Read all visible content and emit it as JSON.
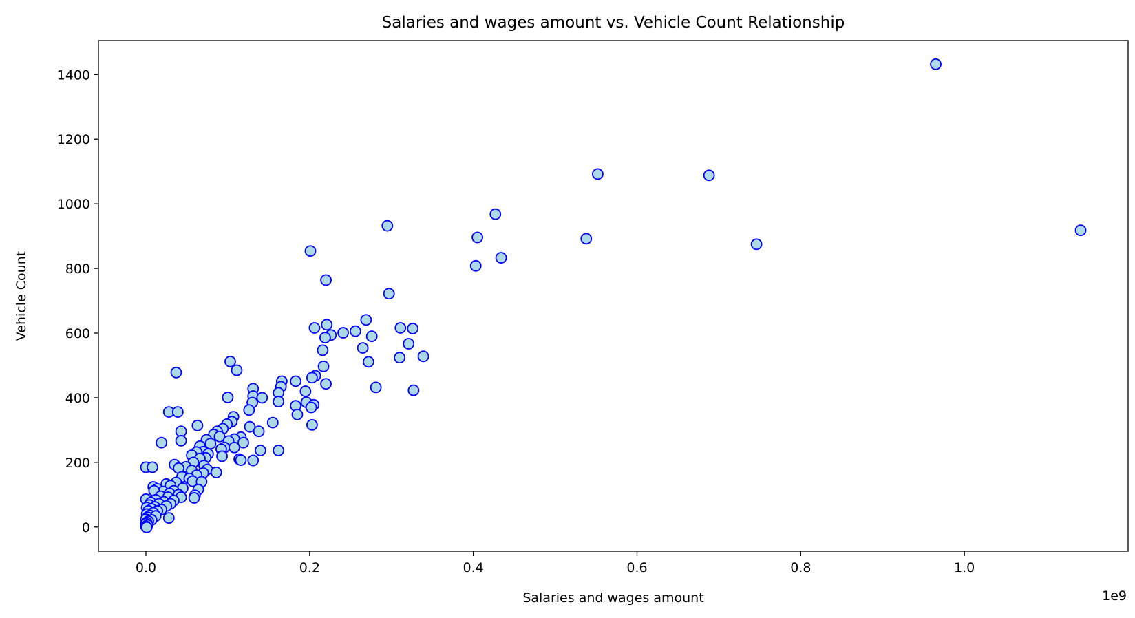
{
  "chart_data": {
    "type": "scatter",
    "title": "Salaries and wages amount vs. Vehicle Count Relationship",
    "xlabel": "Salaries and wages amount",
    "ylabel": "Vehicle Count",
    "x_offset_label": "1e9",
    "xlim": [
      -0.058,
      1.2
    ],
    "ylim": [
      -75,
      1505
    ],
    "x_ticks": [
      0.0,
      0.2,
      0.4,
      0.6,
      0.8,
      1.0
    ],
    "x_tick_labels": [
      "0.0",
      "0.2",
      "0.4",
      "0.6",
      "0.8",
      "1.0"
    ],
    "y_ticks": [
      0,
      200,
      400,
      600,
      800,
      1000,
      1200,
      1400
    ],
    "y_tick_labels": [
      "0",
      "200",
      "400",
      "600",
      "800",
      "1000",
      "1200",
      "1400"
    ],
    "grid": false,
    "marker_face_color": "#add8e6",
    "marker_edge_color": "#0000ff",
    "points": [
      [
        0.965,
        1432
      ],
      [
        0.552,
        1092
      ],
      [
        0.688,
        1088
      ],
      [
        0.427,
        968
      ],
      [
        1.142,
        918
      ],
      [
        0.295,
        932
      ],
      [
        0.405,
        896
      ],
      [
        0.538,
        892
      ],
      [
        0.746,
        875
      ],
      [
        0.201,
        854
      ],
      [
        0.434,
        833
      ],
      [
        0.403,
        808
      ],
      [
        0.22,
        764
      ],
      [
        0.297,
        722
      ],
      [
        0.269,
        641
      ],
      [
        0.221,
        626
      ],
      [
        0.206,
        616
      ],
      [
        0.311,
        616
      ],
      [
        0.326,
        614
      ],
      [
        0.256,
        606
      ],
      [
        0.241,
        601
      ],
      [
        0.226,
        594
      ],
      [
        0.276,
        590
      ],
      [
        0.219,
        586
      ],
      [
        0.321,
        567
      ],
      [
        0.265,
        554
      ],
      [
        0.216,
        547
      ],
      [
        0.339,
        528
      ],
      [
        0.31,
        524
      ],
      [
        0.272,
        511
      ],
      [
        0.103,
        512
      ],
      [
        0.217,
        497
      ],
      [
        0.111,
        485
      ],
      [
        0.037,
        478
      ],
      [
        0.207,
        468
      ],
      [
        0.203,
        462
      ],
      [
        0.166,
        451
      ],
      [
        0.183,
        451
      ],
      [
        0.22,
        443
      ],
      [
        0.165,
        434
      ],
      [
        0.281,
        432
      ],
      [
        0.131,
        428
      ],
      [
        0.327,
        423
      ],
      [
        0.195,
        420
      ],
      [
        0.162,
        415
      ],
      [
        0.131,
        405
      ],
      [
        0.142,
        400
      ],
      [
        0.1,
        401
      ],
      [
        0.162,
        388
      ],
      [
        0.196,
        386
      ],
      [
        0.205,
        378
      ],
      [
        0.183,
        375
      ],
      [
        0.13,
        385
      ],
      [
        0.202,
        370
      ],
      [
        0.126,
        362
      ],
      [
        0.028,
        356
      ],
      [
        0.039,
        356
      ],
      [
        0.185,
        348
      ],
      [
        0.107,
        341
      ],
      [
        0.105,
        326
      ],
      [
        0.155,
        323
      ],
      [
        0.203,
        316
      ],
      [
        0.063,
        314
      ],
      [
        0.127,
        310
      ],
      [
        0.099,
        318
      ],
      [
        0.094,
        304
      ],
      [
        0.087,
        296
      ],
      [
        0.043,
        296
      ],
      [
        0.138,
        296
      ],
      [
        0.083,
        286
      ],
      [
        0.09,
        280
      ],
      [
        0.116,
        278
      ],
      [
        0.108,
        272
      ],
      [
        0.074,
        270
      ],
      [
        0.101,
        266
      ],
      [
        0.043,
        267
      ],
      [
        0.019,
        261
      ],
      [
        0.119,
        261
      ],
      [
        0.079,
        258
      ],
      [
        0.066,
        250
      ],
      [
        0.096,
        246
      ],
      [
        0.108,
        246
      ],
      [
        0.092,
        241
      ],
      [
        0.14,
        237
      ],
      [
        0.162,
        237
      ],
      [
        0.07,
        233
      ],
      [
        0.062,
        232
      ],
      [
        0.076,
        226
      ],
      [
        0.056,
        222
      ],
      [
        0.093,
        219
      ],
      [
        0.073,
        214
      ],
      [
        0.114,
        210
      ],
      [
        0.066,
        212
      ],
      [
        0.058,
        200
      ],
      [
        0.131,
        206
      ],
      [
        0.116,
        207
      ],
      [
        0.035,
        193
      ],
      [
        0.071,
        190
      ],
      [
        0.049,
        186
      ],
      [
        0.04,
        182
      ],
      [
        0.0,
        185
      ],
      [
        0.008,
        185
      ],
      [
        0.075,
        178
      ],
      [
        0.056,
        175
      ],
      [
        0.086,
        169
      ],
      [
        0.07,
        167
      ],
      [
        0.062,
        160
      ],
      [
        0.044,
        155
      ],
      [
        0.053,
        150
      ],
      [
        0.057,
        142
      ],
      [
        0.068,
        140
      ],
      [
        0.037,
        138
      ],
      [
        0.025,
        133
      ],
      [
        0.03,
        128
      ],
      [
        0.009,
        124
      ],
      [
        0.045,
        120
      ],
      [
        0.014,
        118
      ],
      [
        0.064,
        116
      ],
      [
        0.034,
        112
      ],
      [
        0.021,
        110
      ],
      [
        0.01,
        112
      ],
      [
        0.029,
        104
      ],
      [
        0.04,
        100
      ],
      [
        0.06,
        98
      ],
      [
        0.018,
        95
      ],
      [
        0.027,
        92
      ],
      [
        0.043,
        92
      ],
      [
        0.059,
        90
      ],
      [
        0.0,
        86
      ],
      [
        0.012,
        84
      ],
      [
        0.034,
        82
      ],
      [
        0.022,
        78
      ],
      [
        0.006,
        76
      ],
      [
        0.016,
        72
      ],
      [
        0.03,
        72
      ],
      [
        0.004,
        68
      ],
      [
        0.025,
        65
      ],
      [
        0.011,
        62
      ],
      [
        0.001,
        60
      ],
      [
        0.007,
        56
      ],
      [
        0.019,
        54
      ],
      [
        0.003,
        50
      ],
      [
        0.014,
        50
      ],
      [
        0.009,
        44
      ],
      [
        0.001,
        40
      ],
      [
        0.005,
        36
      ],
      [
        0.012,
        34
      ],
      [
        0.002,
        30
      ],
      [
        0.028,
        28
      ],
      [
        0.0,
        24
      ],
      [
        0.007,
        22
      ],
      [
        0.003,
        18
      ],
      [
        0.001,
        14
      ],
      [
        0.0,
        10
      ],
      [
        0.002,
        6
      ],
      [
        0.0,
        2
      ],
      [
        0.001,
        -1
      ]
    ]
  }
}
